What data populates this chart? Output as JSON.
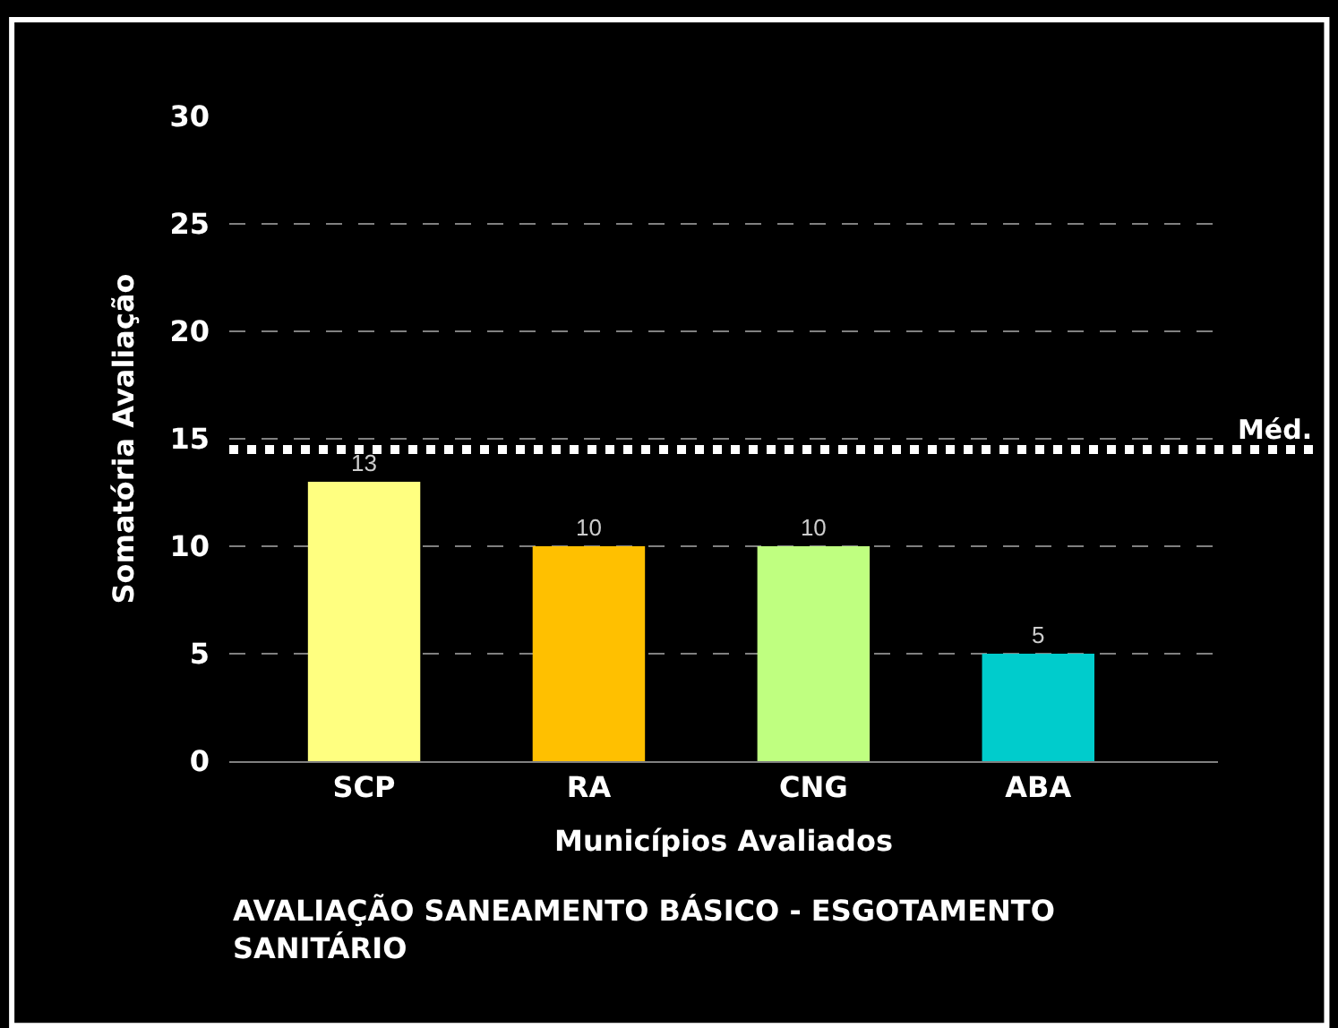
{
  "chart_data": {
    "type": "bar",
    "title": "AVALIAÇÃO SANEAMENTO BÁSICO - ESGOTAMENTO SANITÁRIO",
    "xlabel": "Municípios Avaliados",
    "ylabel": "Somatória Avaliação",
    "categories": [
      "SCP",
      "RA",
      "CNG",
      "ABA"
    ],
    "values": [
      13,
      10,
      10,
      5
    ],
    "colors": [
      "#ffff80",
      "#ffc000",
      "#bfff80",
      "#00cccc"
    ],
    "ylim": [
      0,
      30
    ],
    "yticks": [
      0,
      5,
      10,
      15,
      20,
      25,
      30
    ],
    "grid": "y",
    "data_labels": true,
    "ref_lines": [
      {
        "axis": "y",
        "value": 14.5,
        "label": "Méd.",
        "color": "#ffffff",
        "line_style": "dotted"
      }
    ]
  }
}
